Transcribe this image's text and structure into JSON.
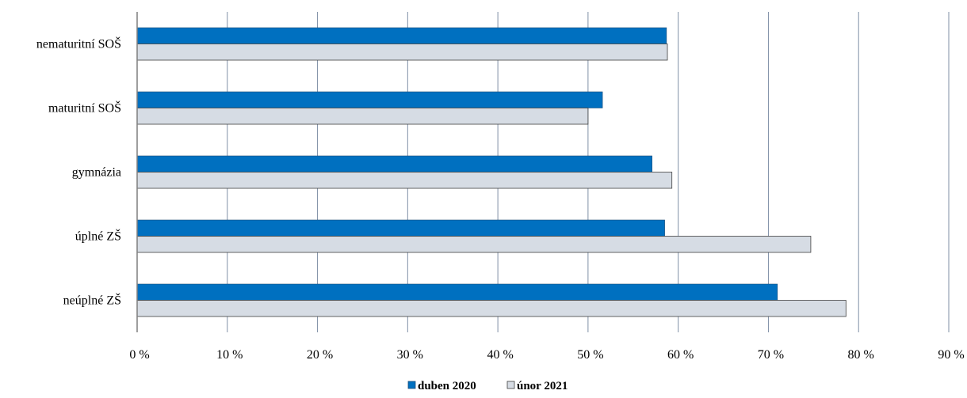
{
  "chart_data": {
    "type": "bar",
    "orientation": "horizontal",
    "categories": [
      "nematuritní SOŠ",
      "maturitní SOŠ",
      "gymnázia",
      "úplné ZŠ",
      "neúplné ZŠ"
    ],
    "series": [
      {
        "name": "duben 2020",
        "values": [
          58.7,
          51.6,
          57.1,
          58.5,
          71.0
        ],
        "color": "#0070C0"
      },
      {
        "name": "únor 2021",
        "values": [
          58.8,
          50.0,
          59.3,
          74.7,
          78.6
        ],
        "color": "#D6DCE4"
      }
    ],
    "xlim": [
      0,
      90
    ],
    "xticks": [
      0,
      10,
      20,
      30,
      40,
      50,
      60,
      70,
      80,
      90
    ],
    "tick_suffix": " %",
    "grid": true,
    "legend_position": "bottom",
    "title": "",
    "xlabel": "",
    "ylabel": ""
  },
  "colors": {
    "grid": "#7F8FA6",
    "axis": "#7F7F7F",
    "bar_border": "#404040"
  }
}
